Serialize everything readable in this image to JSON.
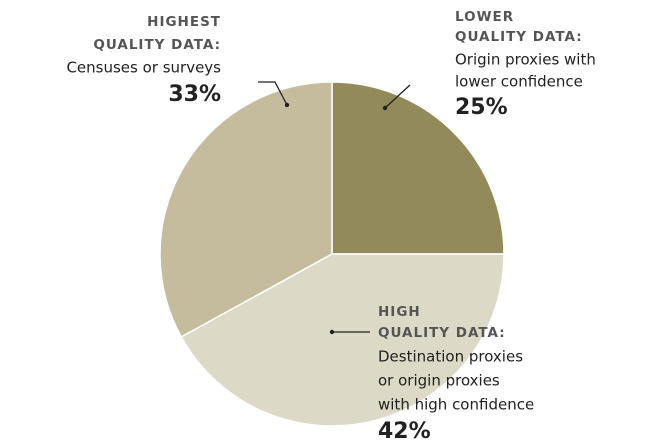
{
  "chart_data": {
    "type": "pie",
    "labels": [
      {
        "heading": [
          "LOWER",
          "QUALITY DATA:"
        ],
        "text": [
          "Origin proxies with",
          "lower confidence"
        ]
      },
      {
        "heading": [
          "HIGH",
          "QUALITY DATA:"
        ],
        "text": [
          "Destination proxies",
          "or origin proxies",
          "with high confidence"
        ]
      },
      {
        "heading": [
          "HIGHEST",
          "QUALITY DATA:"
        ],
        "text": [
          "Censuses or surveys"
        ]
      }
    ],
    "values": [
      25,
      42,
      33
    ],
    "value_labels": [
      "25%",
      "42%",
      "33%"
    ],
    "colors": [
      "#928a5a",
      "#dcd9c6",
      "#c4bc9d"
    ]
  }
}
